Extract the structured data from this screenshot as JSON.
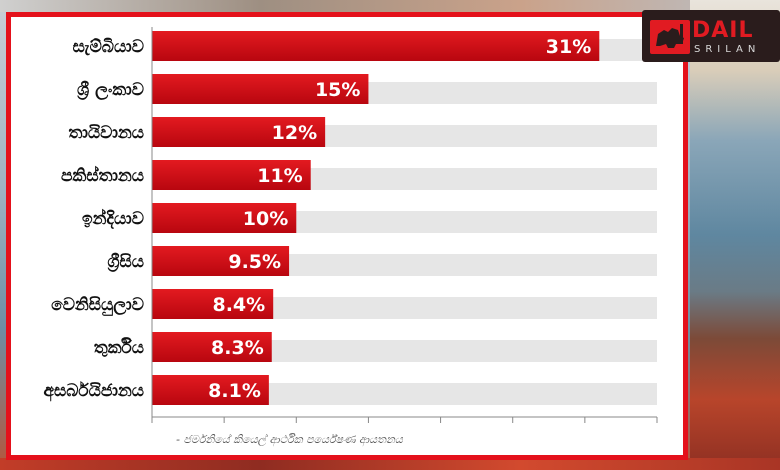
{
  "logo": {
    "text_top": "DAIL",
    "text_bottom": "SRILAN",
    "icon": "lion-icon",
    "accent": "#e11b22"
  },
  "colors": {
    "frame": "#e4111b",
    "bar_dark": "#b8060f",
    "bar_light": "#e31a20",
    "track": "#e6e6e6",
    "grid": "#888888"
  },
  "chart_data": {
    "type": "bar",
    "orientation": "horizontal",
    "categories": [
      "සැම්බියාව",
      "ශ්‍රී ලංකාව",
      "තායිවානය",
      "පකිස්තානය",
      "ඉන්දියාව",
      "ග්‍රීසිය",
      "වෙනිසියුලාව",
      "තුර්කිය",
      "අසර්බයිජානය"
    ],
    "values": [
      31,
      15,
      12,
      11,
      10,
      9.5,
      8.4,
      8.3,
      8.1
    ],
    "value_labels": [
      "31%",
      "15%",
      "12%",
      "11%",
      "10%",
      "9.5%",
      "8.4%",
      "8.3%",
      "8.1%"
    ],
    "xlim": [
      0,
      35
    ],
    "grid": false,
    "source_note": "- ජර්මනියේ කියෙල් ආර්ථික පර්යේෂණ ආයතනය"
  }
}
